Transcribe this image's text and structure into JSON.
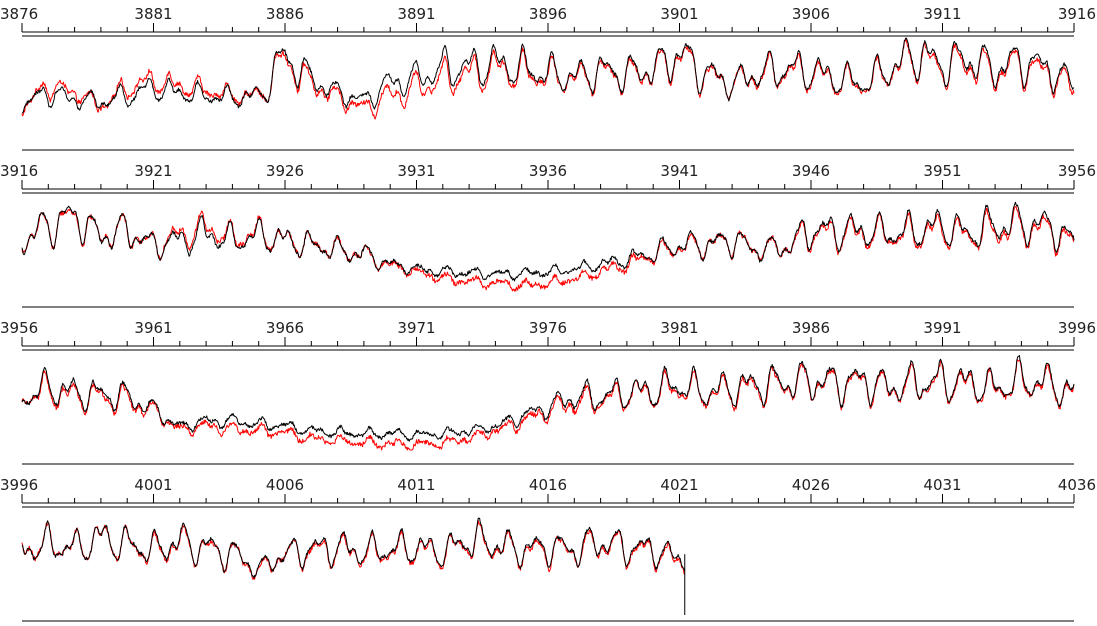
{
  "chart_data": {
    "type": "line",
    "title": "",
    "xlabel": "",
    "ylabel": "",
    "grid": false,
    "legend": "none",
    "series": [
      {
        "color": "#000000"
      },
      {
        "color": "#ff0000"
      }
    ],
    "panels": [
      {
        "xlim": [
          3876,
          3916
        ],
        "ticks": [
          3876,
          3881,
          3886,
          3891,
          3896,
          3901,
          3906,
          3911,
          3916
        ],
        "ylim": [
          0,
          1
        ],
        "anchors": [
          [
            3876,
            0.33,
            0.3
          ],
          [
            3877,
            0.45,
            0.52
          ],
          [
            3878,
            0.38,
            0.45
          ],
          [
            3879,
            0.36,
            0.32
          ],
          [
            3880,
            0.42,
            0.5
          ],
          [
            3881,
            0.5,
            0.58
          ],
          [
            3882,
            0.45,
            0.52
          ],
          [
            3883,
            0.42,
            0.48
          ],
          [
            3884,
            0.4,
            0.42
          ],
          [
            3885,
            0.42,
            0.42
          ],
          [
            3886,
            0.82,
            0.78
          ],
          [
            3887,
            0.6,
            0.55
          ],
          [
            3888,
            0.45,
            0.4
          ],
          [
            3889,
            0.38,
            0.3
          ],
          [
            3890,
            0.55,
            0.42
          ],
          [
            3891,
            0.6,
            0.5
          ],
          [
            3892,
            0.7,
            0.6
          ],
          [
            3893,
            0.72,
            0.65
          ],
          [
            3894,
            0.75,
            0.7
          ],
          [
            3895,
            0.7,
            0.66
          ],
          [
            3896,
            0.65,
            0.62
          ],
          [
            3897,
            0.62,
            0.6
          ],
          [
            3898,
            0.68,
            0.66
          ],
          [
            3899,
            0.65,
            0.63
          ],
          [
            3900,
            0.7,
            0.68
          ],
          [
            3901,
            0.85,
            0.82
          ],
          [
            3902,
            0.65,
            0.63
          ],
          [
            3903,
            0.55,
            0.55
          ],
          [
            3904,
            0.65,
            0.63
          ],
          [
            3905,
            0.7,
            0.68
          ],
          [
            3906,
            0.68,
            0.65
          ],
          [
            3907,
            0.6,
            0.58
          ],
          [
            3908,
            0.55,
            0.53
          ],
          [
            3909,
            0.7,
            0.68
          ],
          [
            3910,
            0.85,
            0.82
          ],
          [
            3911,
            0.75,
            0.72
          ],
          [
            3912,
            0.8,
            0.76
          ],
          [
            3913,
            0.7,
            0.66
          ],
          [
            3914,
            0.78,
            0.74
          ],
          [
            3915,
            0.7,
            0.66
          ],
          [
            3916,
            0.55,
            0.5
          ]
        ]
      },
      {
        "xlim": [
          3916,
          3956
        ],
        "ticks": [
          3916,
          3921,
          3926,
          3931,
          3936,
          3941,
          3946,
          3951,
          3956
        ],
        "ylim": [
          0,
          1
        ],
        "anchors": [
          [
            3916,
            0.55,
            0.55
          ],
          [
            3917,
            0.7,
            0.7
          ],
          [
            3918,
            0.8,
            0.78
          ],
          [
            3919,
            0.6,
            0.6
          ],
          [
            3920,
            0.65,
            0.64
          ],
          [
            3921,
            0.5,
            0.5
          ],
          [
            3922,
            0.55,
            0.6
          ],
          [
            3923,
            0.62,
            0.68
          ],
          [
            3924,
            0.55,
            0.58
          ],
          [
            3925,
            0.6,
            0.62
          ],
          [
            3926,
            0.55,
            0.55
          ],
          [
            3927,
            0.5,
            0.5
          ],
          [
            3928,
            0.45,
            0.45
          ],
          [
            3929,
            0.4,
            0.4
          ],
          [
            3930,
            0.3,
            0.28
          ],
          [
            3931,
            0.25,
            0.22
          ],
          [
            3932,
            0.22,
            0.15
          ],
          [
            3933,
            0.21,
            0.12
          ],
          [
            3934,
            0.2,
            0.1
          ],
          [
            3935,
            0.2,
            0.08
          ],
          [
            3936,
            0.22,
            0.1
          ],
          [
            3937,
            0.25,
            0.15
          ],
          [
            3938,
            0.3,
            0.22
          ],
          [
            3939,
            0.35,
            0.3
          ],
          [
            3940,
            0.42,
            0.4
          ],
          [
            3941,
            0.5,
            0.48
          ],
          [
            3942,
            0.5,
            0.5
          ],
          [
            3943,
            0.55,
            0.55
          ],
          [
            3944,
            0.45,
            0.45
          ],
          [
            3945,
            0.48,
            0.48
          ],
          [
            3946,
            0.65,
            0.62
          ],
          [
            3947,
            0.65,
            0.62
          ],
          [
            3948,
            0.65,
            0.62
          ],
          [
            3949,
            0.62,
            0.6
          ],
          [
            3950,
            0.65,
            0.62
          ],
          [
            3951,
            0.7,
            0.66
          ],
          [
            3952,
            0.62,
            0.6
          ],
          [
            3953,
            0.7,
            0.66
          ],
          [
            3954,
            0.72,
            0.68
          ],
          [
            3955,
            0.7,
            0.66
          ],
          [
            3956,
            0.55,
            0.52
          ]
        ]
      },
      {
        "xlim": [
          3956,
          3996
        ],
        "ticks": [
          3956,
          3961,
          3966,
          3971,
          3976,
          3981,
          3986,
          3991,
          3996
        ],
        "ylim": [
          0,
          1
        ],
        "anchors": [
          [
            3956,
            0.55,
            0.55
          ],
          [
            3957,
            0.65,
            0.62
          ],
          [
            3958,
            0.6,
            0.56
          ],
          [
            3959,
            0.58,
            0.55
          ],
          [
            3960,
            0.55,
            0.52
          ],
          [
            3961,
            0.42,
            0.4
          ],
          [
            3962,
            0.25,
            0.22
          ],
          [
            3963,
            0.3,
            0.25
          ],
          [
            3964,
            0.3,
            0.22
          ],
          [
            3965,
            0.27,
            0.2
          ],
          [
            3966,
            0.25,
            0.18
          ],
          [
            3967,
            0.2,
            0.12
          ],
          [
            3968,
            0.18,
            0.1
          ],
          [
            3969,
            0.17,
            0.08
          ],
          [
            3970,
            0.17,
            0.06
          ],
          [
            3971,
            0.16,
            0.05
          ],
          [
            3972,
            0.17,
            0.07
          ],
          [
            3973,
            0.2,
            0.12
          ],
          [
            3974,
            0.25,
            0.2
          ],
          [
            3975,
            0.35,
            0.3
          ],
          [
            3976,
            0.45,
            0.4
          ],
          [
            3977,
            0.55,
            0.5
          ],
          [
            3978,
            0.55,
            0.52
          ],
          [
            3979,
            0.6,
            0.58
          ],
          [
            3980,
            0.62,
            0.6
          ],
          [
            3981,
            0.68,
            0.65
          ],
          [
            3982,
            0.6,
            0.58
          ],
          [
            3983,
            0.65,
            0.62
          ],
          [
            3984,
            0.68,
            0.65
          ],
          [
            3985,
            0.7,
            0.68
          ],
          [
            3986,
            0.72,
            0.7
          ],
          [
            3987,
            0.7,
            0.68
          ],
          [
            3988,
            0.72,
            0.7
          ],
          [
            3989,
            0.65,
            0.63
          ],
          [
            3990,
            0.7,
            0.68
          ],
          [
            3991,
            0.72,
            0.7
          ],
          [
            3992,
            0.7,
            0.68
          ],
          [
            3993,
            0.65,
            0.63
          ],
          [
            3994,
            0.72,
            0.7
          ],
          [
            3995,
            0.7,
            0.68
          ],
          [
            3996,
            0.6,
            0.58
          ]
        ]
      },
      {
        "xlim": [
          3996,
          4036
        ],
        "ticks": [
          3996,
          4001,
          4006,
          4011,
          4016,
          4021,
          4026,
          4031,
          4036
        ],
        "ylim": [
          0,
          1
        ],
        "xend": 4021.2,
        "anchors": [
          [
            3996,
            0.6,
            0.6
          ],
          [
            3997,
            0.65,
            0.65
          ],
          [
            3998,
            0.62,
            0.62
          ],
          [
            3999,
            0.72,
            0.72
          ],
          [
            4000,
            0.65,
            0.64
          ],
          [
            4001,
            0.6,
            0.58
          ],
          [
            4002,
            0.68,
            0.66
          ],
          [
            4003,
            0.62,
            0.6
          ],
          [
            4004,
            0.55,
            0.55
          ],
          [
            4005,
            0.4,
            0.38
          ],
          [
            4006,
            0.55,
            0.55
          ],
          [
            4007,
            0.6,
            0.58
          ],
          [
            4008,
            0.62,
            0.6
          ],
          [
            4009,
            0.58,
            0.56
          ],
          [
            4010,
            0.6,
            0.58
          ],
          [
            4011,
            0.62,
            0.6
          ],
          [
            4012,
            0.58,
            0.56
          ],
          [
            4013,
            0.7,
            0.68
          ],
          [
            4014,
            0.65,
            0.63
          ],
          [
            4015,
            0.6,
            0.58
          ],
          [
            4016,
            0.62,
            0.6
          ],
          [
            4017,
            0.6,
            0.58
          ],
          [
            4018,
            0.68,
            0.66
          ],
          [
            4019,
            0.62,
            0.6
          ],
          [
            4020,
            0.6,
            0.58
          ],
          [
            4021,
            0.5,
            0.48
          ]
        ]
      }
    ]
  }
}
